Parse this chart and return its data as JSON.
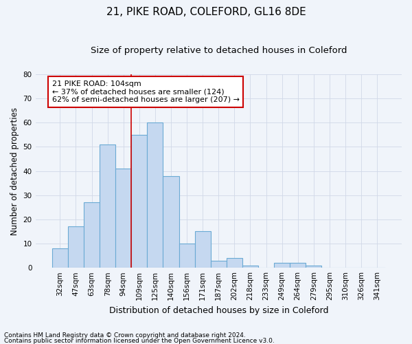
{
  "title1": "21, PIKE ROAD, COLEFORD, GL16 8DE",
  "title2": "Size of property relative to detached houses in Coleford",
  "xlabel": "Distribution of detached houses by size in Coleford",
  "ylabel": "Number of detached properties",
  "categories": [
    "32sqm",
    "47sqm",
    "63sqm",
    "78sqm",
    "94sqm",
    "109sqm",
    "125sqm",
    "140sqm",
    "156sqm",
    "171sqm",
    "187sqm",
    "202sqm",
    "218sqm",
    "233sqm",
    "249sqm",
    "264sqm",
    "279sqm",
    "295sqm",
    "310sqm",
    "326sqm",
    "341sqm"
  ],
  "values": [
    8,
    17,
    27,
    51,
    41,
    55,
    60,
    38,
    10,
    15,
    3,
    4,
    1,
    0,
    2,
    2,
    1,
    0,
    0,
    0,
    0
  ],
  "bar_color": "#c5d8f0",
  "bar_edge_color": "#6aaad4",
  "vline_x": 4.5,
  "vline_color": "#cc0000",
  "annotation_text": "21 PIKE ROAD: 104sqm\n← 37% of detached houses are smaller (124)\n62% of semi-detached houses are larger (207) →",
  "annotation_box_color": "#ffffff",
  "annotation_box_edge": "#cc0000",
  "ylim": [
    0,
    80
  ],
  "yticks": [
    0,
    10,
    20,
    30,
    40,
    50,
    60,
    70,
    80
  ],
  "grid_color": "#d0d8e8",
  "bg_color": "#f0f4fa",
  "plot_bg_color": "#f0f4fa",
  "footnote1": "Contains HM Land Registry data © Crown copyright and database right 2024.",
  "footnote2": "Contains public sector information licensed under the Open Government Licence v3.0.",
  "title1_fontsize": 11,
  "title2_fontsize": 9.5,
  "xlabel_fontsize": 9,
  "ylabel_fontsize": 8.5,
  "tick_fontsize": 7.5,
  "annot_fontsize": 8,
  "footnote_fontsize": 6.5
}
